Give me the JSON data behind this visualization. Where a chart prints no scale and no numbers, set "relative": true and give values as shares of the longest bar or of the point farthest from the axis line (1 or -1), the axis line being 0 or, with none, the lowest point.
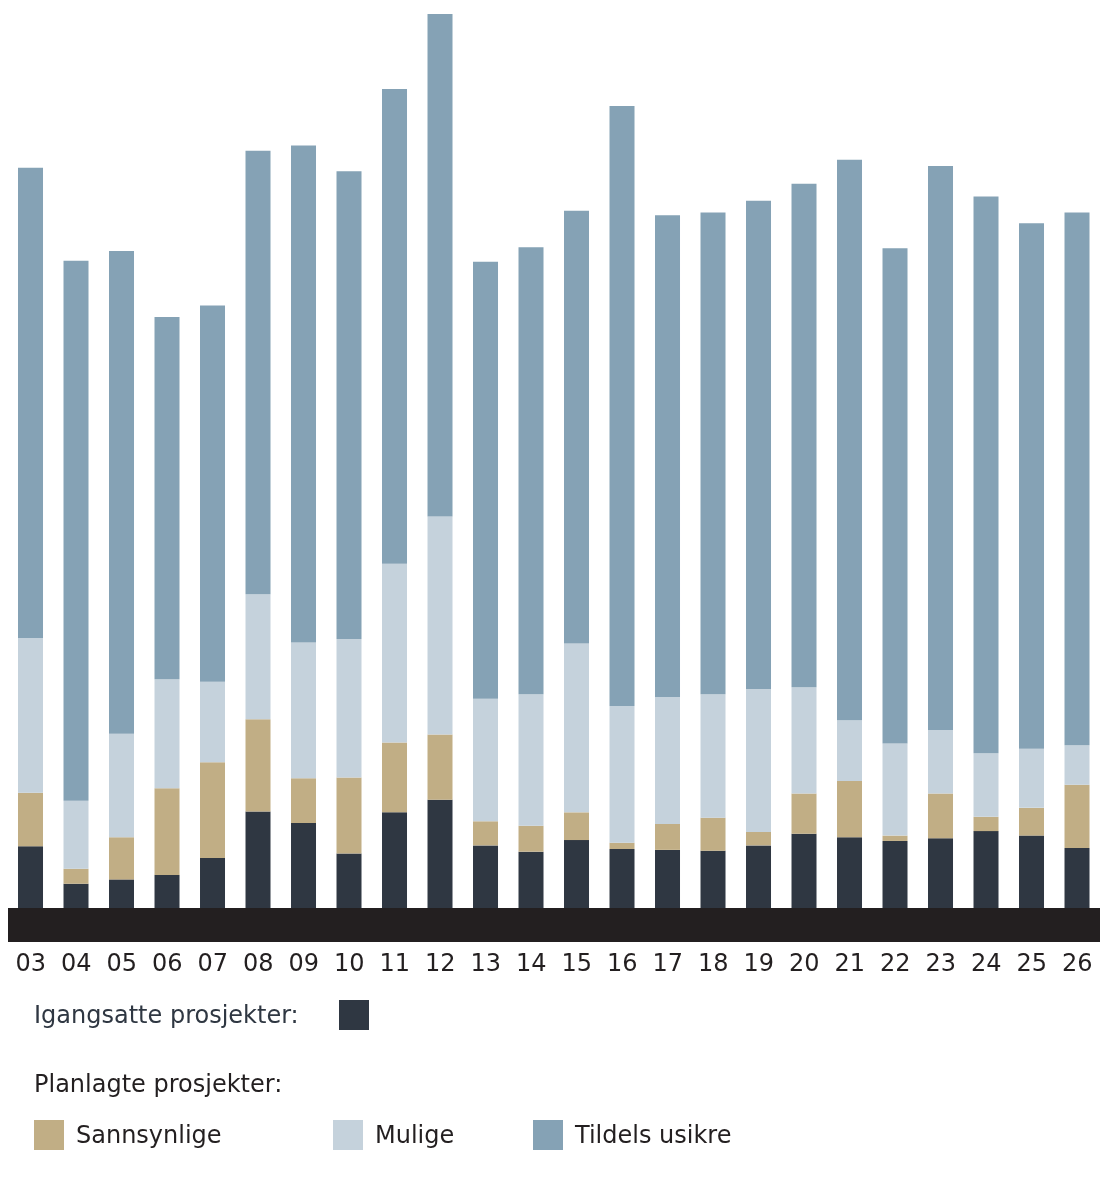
{
  "chart_data": {
    "type": "bar",
    "stacked": true,
    "relative": true,
    "legend": "bottom",
    "legend_title": "Planlagte prosjekter:",
    "categories": [
      "03",
      "04",
      "05",
      "06",
      "07",
      "08",
      "09",
      "10",
      "11",
      "12",
      "13",
      "14",
      "15",
      "16",
      "17",
      "18",
      "19",
      "20",
      "21",
      "22",
      "23",
      "24",
      "25",
      "26"
    ],
    "series": [
      {
        "name": "Igangsatte prosjekter:",
        "color": "#2f3742",
        "values": [
          0.069,
          0.027,
          0.032,
          0.037,
          0.056,
          0.108,
          0.095,
          0.061,
          0.107,
          0.121,
          0.07,
          0.063,
          0.076,
          0.066,
          0.065,
          0.064,
          0.07,
          0.083,
          0.079,
          0.075,
          0.078,
          0.086,
          0.081,
          0.067
        ]
      },
      {
        "name": "Sannsynlige",
        "color": "#c1ae85",
        "values": [
          0.06,
          0.017,
          0.047,
          0.097,
          0.107,
          0.103,
          0.05,
          0.085,
          0.078,
          0.073,
          0.027,
          0.029,
          0.031,
          0.007,
          0.029,
          0.037,
          0.015,
          0.045,
          0.063,
          0.006,
          0.05,
          0.016,
          0.031,
          0.071
        ]
      },
      {
        "name": "Mulige",
        "color": "#c5d2dc",
        "values": [
          0.173,
          0.076,
          0.116,
          0.122,
          0.09,
          0.14,
          0.152,
          0.155,
          0.2,
          0.244,
          0.137,
          0.147,
          0.189,
          0.153,
          0.142,
          0.138,
          0.16,
          0.119,
          0.068,
          0.103,
          0.071,
          0.071,
          0.066,
          0.044
        ]
      },
      {
        "name": "Tildels usikre",
        "color": "#85a2b5",
        "values": [
          0.526,
          0.604,
          0.54,
          0.405,
          0.421,
          0.496,
          0.556,
          0.523,
          0.531,
          0.562,
          0.489,
          0.5,
          0.484,
          0.671,
          0.539,
          0.539,
          0.546,
          0.563,
          0.627,
          0.554,
          0.631,
          0.623,
          0.588,
          0.596
        ]
      }
    ]
  }
}
